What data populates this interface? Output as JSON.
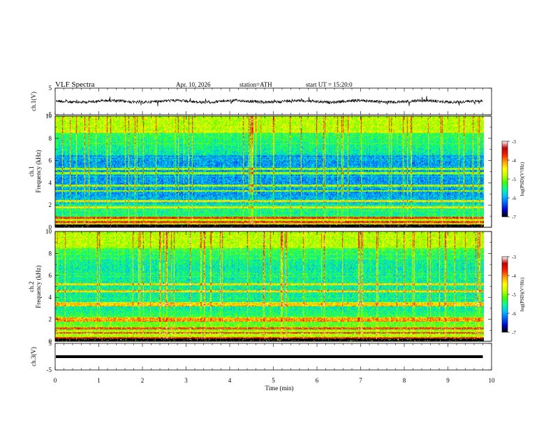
{
  "header": {
    "title": "VLF  Spectra",
    "date": "Apr. 10, 2026",
    "station": "station=ATH",
    "start_ut": "start  UT  =    15:20:0"
  },
  "chart_data": [
    {
      "type": "line",
      "panel": "ch1-waveform",
      "ylabel": "ch.1(V)",
      "ylim": [
        -5,
        5
      ],
      "y_ticks": [
        "5",
        "-5"
      ],
      "xlim": [
        0,
        10
      ],
      "trace_level": 0,
      "trace_extent_min": 9.8
    },
    {
      "type": "heatmap",
      "panel": "ch1-spectrogram",
      "ylabel": "ch.1\nFrequency (kHz)",
      "ylim": [
        0,
        10
      ],
      "y_ticks": [
        "0",
        "2",
        "4",
        "6",
        "8",
        "10"
      ],
      "xlim": [
        0,
        10
      ],
      "colorbar": {
        "label": "log(PSD)(V²/Hz)",
        "range": [
          -7,
          -3
        ],
        "ticks": [
          "-3",
          "-4",
          "-5",
          "-6",
          "-7"
        ],
        "colors": [
          "#000000",
          "#0000c8",
          "#0060ff",
          "#00c0ff",
          "#00ffa0",
          "#40ff00",
          "#c0ff00",
          "#ffff00",
          "#ffa000",
          "#ff2000",
          "#c00000",
          "#ffffff"
        ]
      },
      "bands_khz": [
        0.2,
        0.5,
        0.9,
        1.8,
        2.4,
        3.3,
        3.8,
        4.9,
        5.3
      ]
    },
    {
      "type": "heatmap",
      "panel": "ch2-spectrogram",
      "ylabel": "ch.2\nFrequency (kHz)",
      "ylim": [
        0,
        10
      ],
      "y_ticks": [
        "0",
        "2",
        "4",
        "6",
        "8",
        "10"
      ],
      "xlim": [
        0,
        10
      ],
      "colorbar": {
        "label": "log(PSD)(V²/Hz)",
        "range": [
          -7,
          -3
        ],
        "ticks": [
          "-3",
          "-4",
          "-5",
          "-6",
          "-7"
        ]
      },
      "bands_khz": [
        0.3,
        0.8,
        1.2,
        1.9,
        2.1,
        3.3,
        3.5,
        4.6,
        5.2
      ]
    },
    {
      "type": "line",
      "panel": "ch3-waveform",
      "ylabel": "ch.3(V)",
      "ylim": [
        -5,
        5
      ],
      "y_ticks": [
        "5",
        "-5"
      ],
      "xlim": [
        0,
        10
      ],
      "trace_level": 0,
      "trace_extent_min": 9.8
    }
  ],
  "x_axis": {
    "label": "Time  (min)",
    "ticks": [
      "0",
      "1",
      "2",
      "3",
      "4",
      "5",
      "6",
      "7",
      "8",
      "9",
      "10"
    ]
  }
}
